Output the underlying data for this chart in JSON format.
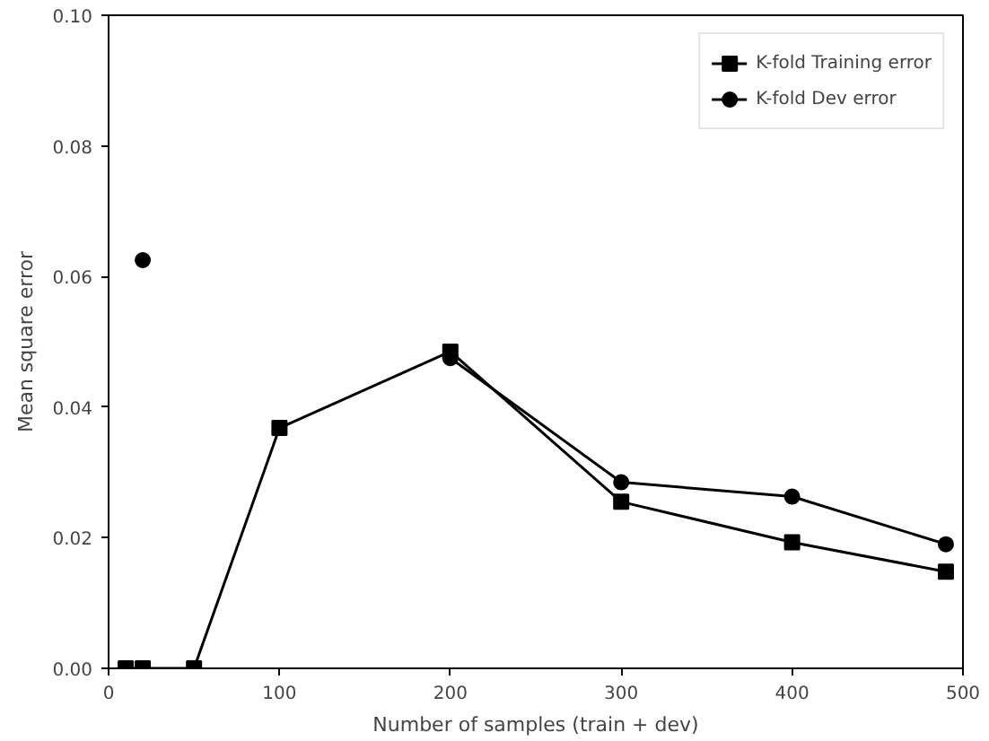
{
  "chart_data": {
    "type": "line",
    "xlabel": "Number of samples (train + dev)",
    "ylabel": "Mean square error",
    "x": [
      10,
      20,
      50,
      100,
      200,
      300,
      400,
      490
    ],
    "series": [
      {
        "name": "K-fold Training error",
        "color": "#000000",
        "marker": "square",
        "values": [
          0,
          0,
          0,
          0.0368,
          0.0485,
          0.0255,
          0.0193,
          0.0148
        ]
      },
      {
        "name": "K-fold Dev error",
        "color": "#000000",
        "marker": "circle",
        "values": [
          null,
          0.0625,
          null,
          null,
          0.0475,
          0.0285,
          0.0263,
          0.019
        ]
      }
    ],
    "xlim": [
      0,
      500
    ],
    "xticks": [
      0,
      100,
      200,
      300,
      400,
      500
    ],
    "ylim": [
      0,
      0.1
    ],
    "yticks": [
      {
        "value": 0,
        "label": "0.00"
      },
      {
        "value": 0.02,
        "label": "0.02"
      },
      {
        "value": 0.04,
        "label": "0.04"
      },
      {
        "value": 0.06,
        "label": "0.06"
      },
      {
        "value": 0.08,
        "label": "0.08"
      },
      {
        "value": 0.1,
        "label": "0.10"
      }
    ],
    "grid": false,
    "legend": "top right",
    "line_style": "solid"
  }
}
